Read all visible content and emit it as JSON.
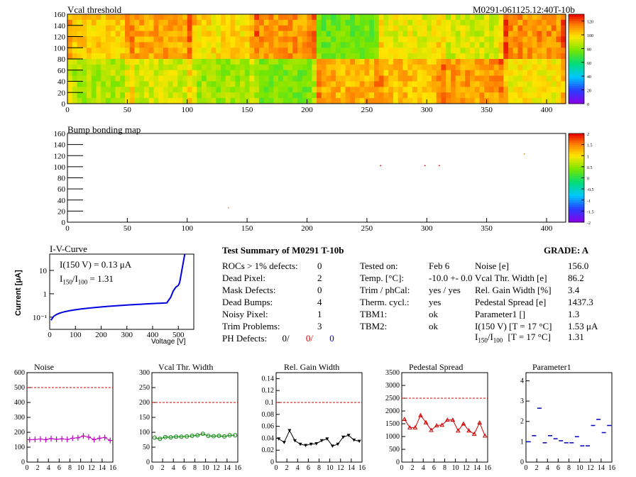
{
  "header": {
    "vcal_title": "Vcal threshold",
    "module_id": "M0291-061125.12:40T-10b",
    "bump_title": "Bump bonding map"
  },
  "heatmaps": [
    {
      "id": "vcal",
      "x_ticks": [
        "0",
        "50",
        "100",
        "150",
        "200",
        "250",
        "300",
        "350",
        "400"
      ],
      "y_ticks": [
        "0",
        "20",
        "40",
        "60",
        "80",
        "100",
        "120",
        "140",
        "160"
      ],
      "z_ticks": [
        "0",
        "20",
        "40",
        "60",
        "80",
        "100",
        "120"
      ],
      "xlim": [
        0,
        416
      ],
      "ylim": [
        0,
        160
      ],
      "zlim": [
        0,
        130
      ]
    },
    {
      "id": "bump",
      "x_ticks": [
        "0",
        "50",
        "100",
        "150",
        "200",
        "250",
        "300",
        "350",
        "400"
      ],
      "y_ticks": [
        "0",
        "20",
        "40",
        "60",
        "80",
        "100",
        "120",
        "140",
        "160"
      ],
      "z_ticks": [
        "-2",
        "-1.5",
        "-1",
        "-0.5",
        "0",
        "0.5",
        "1",
        "1.5",
        "2"
      ],
      "xlim": [
        0,
        416
      ],
      "ylim": [
        0,
        160
      ],
      "zlim": [
        -2,
        2
      ]
    }
  ],
  "iv": {
    "title": "I-V-Curve",
    "ylabel": "Current [μA]",
    "xlabel": "Voltage [V]",
    "x_ticks": [
      "0",
      "100",
      "200",
      "300",
      "400",
      "500"
    ],
    "y_ticks": [
      "10⁻¹",
      "1",
      "10"
    ],
    "i150": "I(150 V) = 0.13 μA",
    "ratio_label": "I",
    "ratio_sub1": "150",
    "ratio_slash": "/I",
    "ratio_sub2": "100",
    "ratio_value": "=  1.31"
  },
  "summary": {
    "title": "Test Summary of M0291     T-10b",
    "grade": "GRADE:  A",
    "defects": [
      {
        "label": "ROCs > 1% defects:",
        "value": "0"
      },
      {
        "label": "Dead Pixel:",
        "value": "2"
      },
      {
        "label": "Mask Defects:",
        "value": "0"
      },
      {
        "label": "Dead Bumps:",
        "value": "4"
      },
      {
        "label": "Noisy Pixel:",
        "value": "1"
      },
      {
        "label": "Trim Problems:",
        "value": "3"
      }
    ],
    "ph_label": "PH Defects:",
    "ph_black": "0/",
    "ph_red": "0/",
    "ph_blue": "0",
    "conditions": [
      {
        "label": "Tested on:",
        "value": "Feb 6"
      },
      {
        "label": "Temp. [°C]:",
        "value": "-10.0 +- 0.0"
      },
      {
        "label": "Trim / phCal:",
        "value": "yes / yes"
      },
      {
        "label": "Therm. cycl.:",
        "value": "yes"
      },
      {
        "label": "TBM1:",
        "value": "ok"
      },
      {
        "label": "TBM2:",
        "value": "ok"
      }
    ],
    "results": [
      {
        "label": "Noise [e]",
        "value": "156.0"
      },
      {
        "label": "Vcal Thr. Width [e]",
        "value": "86.2"
      },
      {
        "label": "Rel. Gain Width [%]",
        "value": "3.4"
      },
      {
        "label": "Pedestal Spread [e]",
        "value": "1437.3"
      },
      {
        "label": "Parameter1 []",
        "value": "1.3"
      },
      {
        "label": "I(150 V) [T = 17 °C]",
        "value": "1.53 μA"
      }
    ],
    "ratio_row_label_a": "I",
    "ratio_row_sub1": "150",
    "ratio_row_label_b": "/I",
    "ratio_row_sub2": "100",
    "ratio_row_label_c": "[T = 17 °C]",
    "ratio_row_value": "1.31"
  },
  "chart_data": [
    {
      "type": "line",
      "title": "Noise",
      "x": [
        0,
        1,
        2,
        3,
        4,
        5,
        6,
        7,
        8,
        9,
        10,
        11,
        12,
        13,
        14,
        15
      ],
      "values": [
        150,
        152,
        155,
        150,
        158,
        153,
        156,
        152,
        160,
        163,
        175,
        168,
        150,
        160,
        165,
        145
      ],
      "ylim": [
        0,
        600
      ],
      "y_ticks": [
        "0",
        "100",
        "200",
        "300",
        "400",
        "500",
        "600"
      ],
      "threshold": 500,
      "color": "#c000c0",
      "marker": "cross"
    },
    {
      "type": "line",
      "title": "Vcal Thr. Width",
      "x": [
        0,
        1,
        2,
        3,
        4,
        5,
        6,
        7,
        8,
        9,
        10,
        11,
        12,
        13,
        14,
        15
      ],
      "values": [
        82,
        78,
        84,
        83,
        85,
        85,
        86,
        88,
        90,
        95,
        88,
        87,
        88,
        86,
        90,
        90
      ],
      "ylim": [
        0,
        300
      ],
      "y_ticks": [
        "0",
        "50",
        "100",
        "150",
        "200",
        "250",
        "300"
      ],
      "threshold": 200,
      "color": "#008000",
      "marker": "circle"
    },
    {
      "type": "line",
      "title": "Rel. Gain Width",
      "x": [
        0,
        1,
        2,
        3,
        4,
        5,
        6,
        7,
        8,
        9,
        10,
        11,
        12,
        13,
        14,
        15
      ],
      "values": [
        0.039,
        0.033,
        0.053,
        0.036,
        0.03,
        0.028,
        0.03,
        0.031,
        0.036,
        0.039,
        0.027,
        0.03,
        0.042,
        0.045,
        0.037,
        0.035
      ],
      "ylim": [
        0,
        0.15
      ],
      "y_ticks": [
        "0",
        "0.02",
        "0.04",
        "0.06",
        "0.08",
        "0.1",
        "0.12",
        "0.14"
      ],
      "threshold": 0.1,
      "color": "#000000",
      "marker": "triangle"
    },
    {
      "type": "line",
      "title": "Pedestal Spread",
      "x": [
        0,
        1,
        2,
        3,
        4,
        5,
        6,
        7,
        8,
        9,
        10,
        11,
        12,
        13,
        14,
        15
      ],
      "values": [
        1680,
        1350,
        1350,
        1830,
        1550,
        1250,
        1430,
        1450,
        1650,
        1650,
        1230,
        1500,
        1230,
        1100,
        1540,
        1030
      ],
      "ylim": [
        0,
        3500
      ],
      "y_ticks": [
        "0",
        "500",
        "1000",
        "1500",
        "2000",
        "2500",
        "3000",
        "3500"
      ],
      "threshold": 2500,
      "color": "#d00000",
      "marker": "triangle-open"
    },
    {
      "type": "scatter",
      "title": "Parameter1",
      "x": [
        0,
        1,
        2,
        3,
        4,
        5,
        6,
        7,
        8,
        9,
        10,
        11,
        12,
        13,
        14,
        15
      ],
      "values": [
        1.0,
        1.3,
        2.65,
        0.95,
        1.3,
        1.15,
        1.05,
        0.95,
        0.95,
        1.25,
        0.8,
        0.8,
        1.8,
        2.1,
        1.45,
        1.8
      ],
      "ylim": [
        0,
        4.4
      ],
      "y_ticks": [
        "0",
        "1",
        "2",
        "3",
        "4"
      ],
      "threshold": null,
      "color": "#0000c0",
      "marker": "dash"
    }
  ]
}
